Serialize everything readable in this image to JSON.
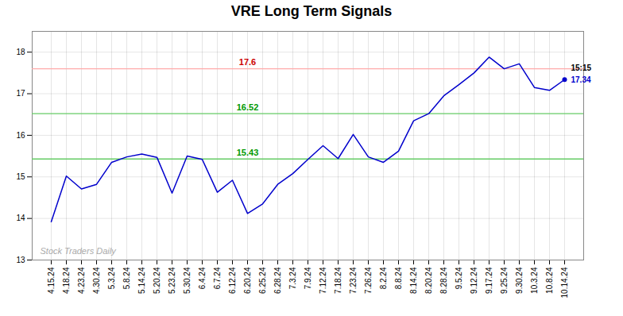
{
  "chart_data": {
    "type": "line",
    "title": "VRE Long Term Signals",
    "categories": [
      "4.15.24",
      "4.18.24",
      "4.23.24",
      "4.30.24",
      "5.3.24",
      "5.8.24",
      "5.14.24",
      "5.20.24",
      "5.23.24",
      "5.30.24",
      "6.4.24",
      "6.7.24",
      "6.12.24",
      "6.20.24",
      "6.25.24",
      "6.28.24",
      "7.3.24",
      "7.9.24",
      "7.12.24",
      "7.18.24",
      "7.23.24",
      "7.26.24",
      "8.2.24",
      "8.8.24",
      "8.14.24",
      "8.20.24",
      "8.28.24",
      "9.5.24",
      "9.12.24",
      "9.17.24",
      "9.25.24",
      "9.30.24",
      "10.3.24",
      "10.8.24",
      "10.14.24"
    ],
    "values": [
      13.92,
      15.02,
      14.71,
      14.82,
      15.35,
      15.48,
      15.55,
      15.47,
      14.61,
      15.5,
      15.42,
      14.63,
      14.92,
      14.12,
      14.35,
      14.82,
      15.08,
      15.42,
      15.75,
      15.44,
      16.02,
      15.48,
      15.35,
      15.62,
      16.35,
      16.52,
      16.95,
      17.22,
      17.5,
      17.88,
      17.6,
      17.72,
      17.15,
      17.08,
      17.34
    ],
    "color": "#0000cc",
    "ylim": [
      13.0,
      18.5
    ],
    "yticks": [
      13,
      14,
      15,
      16,
      17,
      18
    ],
    "grid": true,
    "hlines": [
      {
        "value": 17.6,
        "label": "17.6",
        "color": "#ffaaaa",
        "label_color": "#cc0000"
      },
      {
        "value": 16.52,
        "label": "16.52",
        "color": "#66cc66",
        "label_color": "#009900"
      },
      {
        "value": 15.43,
        "label": "15.43",
        "color": "#66cc66",
        "label_color": "#009900"
      }
    ],
    "end_labels": [
      {
        "text": "15:15",
        "color": "#000000"
      },
      {
        "text": "17.34",
        "color": "#0000cc"
      }
    ],
    "watermark": {
      "text": "Stock Traders Daily",
      "color": "#aaaaaa"
    }
  }
}
